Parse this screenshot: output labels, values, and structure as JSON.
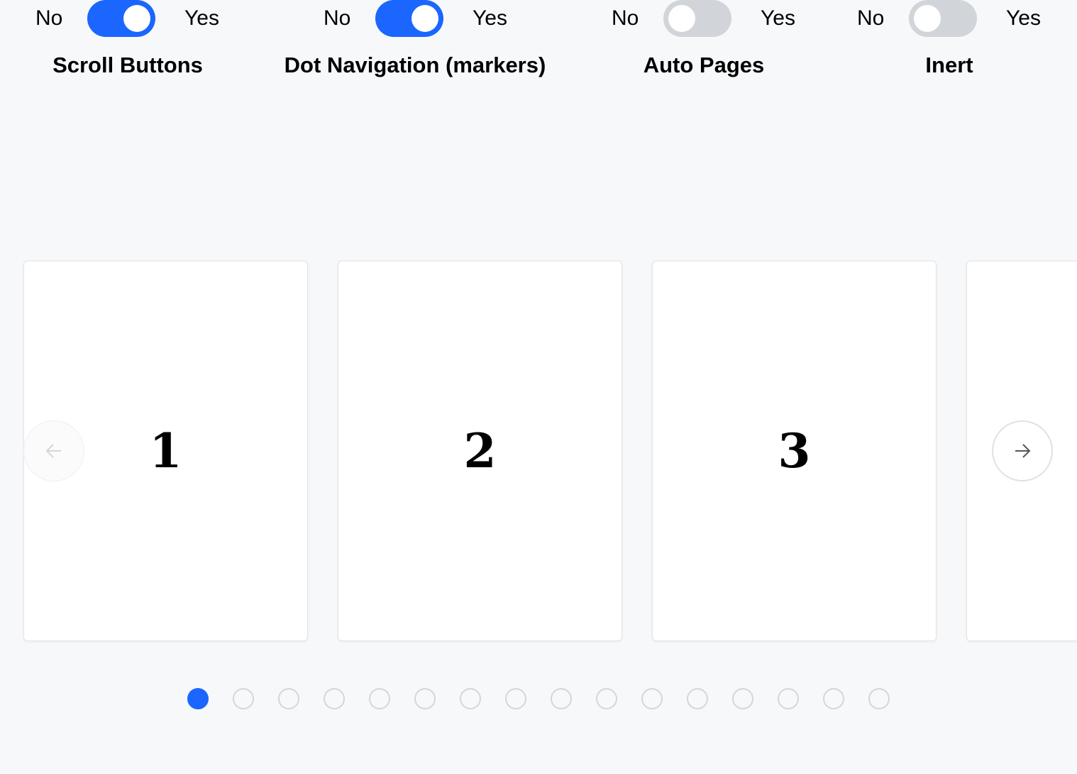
{
  "toggles": [
    {
      "title": "Scroll Buttons",
      "no": "No",
      "yes": "Yes",
      "on": true
    },
    {
      "title": "Dot Navigation (markers)",
      "no": "No",
      "yes": "Yes",
      "on": true
    },
    {
      "title": "Auto Pages",
      "no": "No",
      "yes": "Yes",
      "on": false
    },
    {
      "title": "Inert",
      "no": "No",
      "yes": "Yes",
      "on": false
    }
  ],
  "cards": [
    "1",
    "2",
    "3",
    ""
  ],
  "buttons": {
    "prev_icon": "arrow-left-icon",
    "next_icon": "arrow-right-icon",
    "prev_disabled": true
  },
  "dots": {
    "count": 16,
    "active": 0
  },
  "colors": {
    "accent": "#1a66ff",
    "off": "#d1d5da",
    "background": "#f7f8fa"
  }
}
